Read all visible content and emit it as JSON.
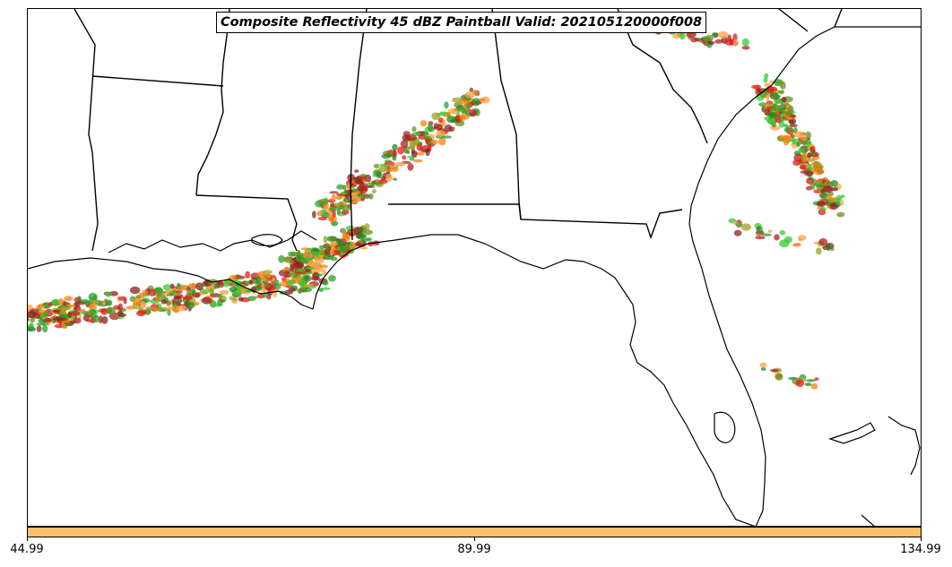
{
  "title": "Composite Reflectivity 45 dBZ Paintball Valid: 202105120000f008",
  "colorbar": {
    "color": "#ffc06a",
    "ticks": [
      "44.99",
      "89.99",
      "134.99"
    ]
  },
  "map": {
    "region": "US Gulf Coast and Southeast",
    "coastline_color": "#000000",
    "member_colors": [
      "#e41a1c",
      "#ff7f0e",
      "#ffa040",
      "#2ca02c",
      "#33cc33",
      "#8b2323",
      "#6b8e23",
      "#a0a020",
      "#b22222",
      "#228b22"
    ]
  }
}
